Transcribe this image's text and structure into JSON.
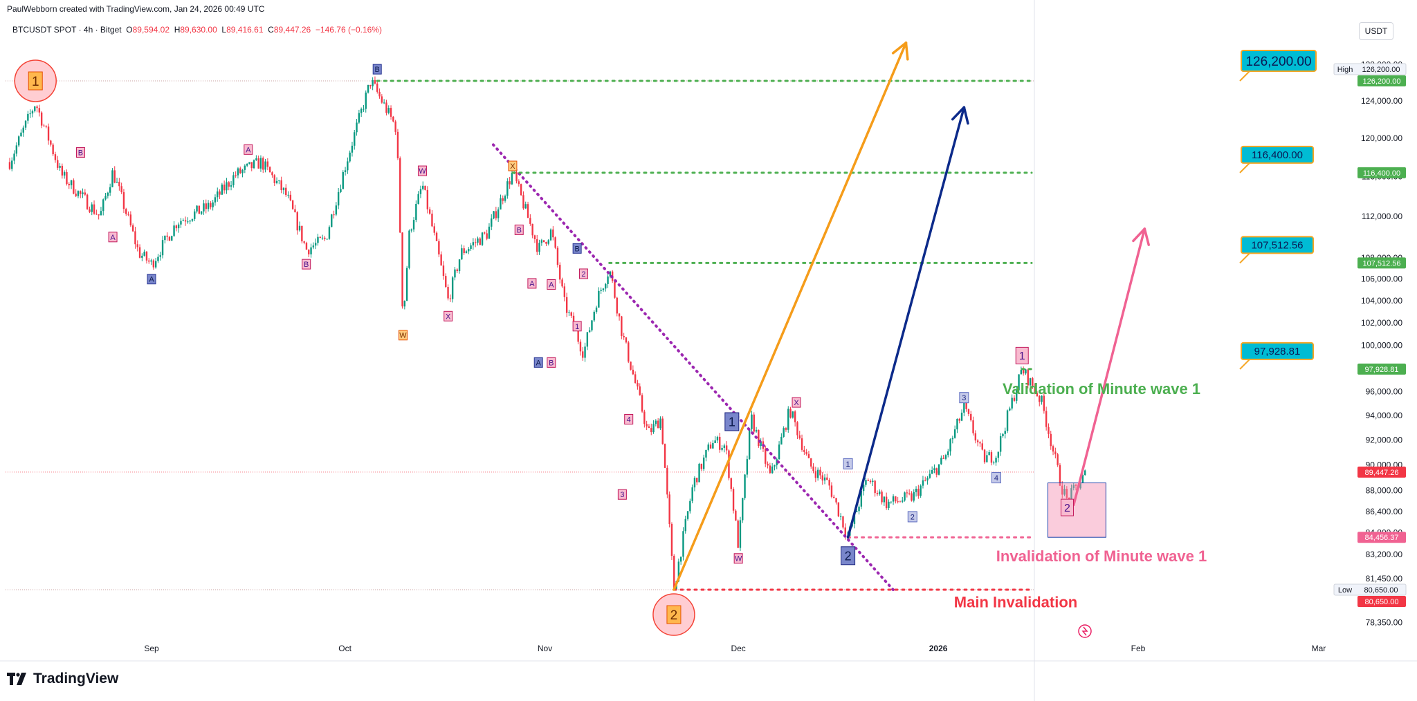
{
  "header": {
    "attribution": "PaulWebborn created with TradingView.com, Jan 24, 2026 00:49 UTC",
    "symbol": "BTCUSDT SPOT · 4h · Bitget",
    "o_label": "O",
    "o_value": "89,594.02",
    "h_label": "H",
    "h_value": "89,630.00",
    "l_label": "L",
    "l_value": "89,416.61",
    "c_label": "C",
    "c_value": "89,447.26",
    "change": "−146.76 (−0.16%)"
  },
  "currency_button": "USDT",
  "footer": {
    "brand": "TradingView"
  },
  "colors": {
    "up": "#089981",
    "down": "#f23645",
    "orange": "#f59c1a",
    "navy": "#0c2a8a",
    "pink": "#f06292",
    "green": "#4caf50",
    "red": "#f23645",
    "purple": "#9c27b0",
    "cyan_label": "#00bcd4",
    "label_border": "#f5a623"
  },
  "chart_data": {
    "type": "candlestick",
    "x_ticks": [
      "Sep",
      "Oct",
      "Nov",
      "Dec",
      "2026",
      "Feb",
      "Mar"
    ],
    "y_ticks": [
      "128,000.00",
      "124,000.00",
      "120,000.00",
      "116,000.00",
      "112,000.00",
      "108,000.00",
      "106,000.00",
      "104,000.00",
      "102,000.00",
      "100,000.00",
      "98,000.00",
      "96,000.00",
      "94,000.00",
      "92,000.00",
      "90,000.00",
      "88,000.00",
      "86,400.00",
      "84,800.00",
      "83,200.00",
      "81,450.00",
      "78,350.00"
    ],
    "y_tick_values": [
      128000,
      124000,
      120000,
      116000,
      112000,
      108000,
      106000,
      104000,
      102000,
      100000,
      98000,
      96000,
      94000,
      92000,
      90000,
      88000,
      86400,
      84800,
      83200,
      81450,
      78350
    ],
    "x_tick_dates": [
      "2025-09-01",
      "2025-10-01",
      "2025-11-01",
      "2025-12-01",
      "2026-01-01",
      "2026-02-01",
      "2026-03-01"
    ],
    "price_path": [
      [
        "2025-08-10",
        117500
      ],
      [
        "2025-08-14",
        123800
      ],
      [
        "2025-08-18",
        116200
      ],
      [
        "2025-08-24",
        112000
      ],
      [
        "2025-08-26",
        116500
      ],
      [
        "2025-08-30",
        108500
      ],
      [
        "2025-09-01",
        107400
      ],
      [
        "2025-09-05",
        111500
      ],
      [
        "2025-09-10",
        113000
      ],
      [
        "2025-09-14",
        116200
      ],
      [
        "2025-09-18",
        117500
      ],
      [
        "2025-09-22",
        114000
      ],
      [
        "2025-09-25",
        108800
      ],
      [
        "2025-09-28",
        109800
      ],
      [
        "2025-10-01",
        117000
      ],
      [
        "2025-10-05",
        126200
      ],
      [
        "2025-10-09",
        121000
      ],
      [
        "2025-10-10",
        102000
      ],
      [
        "2025-10-11",
        110500
      ],
      [
        "2025-10-13",
        115200
      ],
      [
        "2025-10-17",
        104000
      ],
      [
        "2025-10-19",
        108500
      ],
      [
        "2025-10-23",
        110300
      ],
      [
        "2025-10-27",
        116400
      ],
      [
        "2025-10-31",
        108800
      ],
      [
        "2025-11-02",
        110600
      ],
      [
        "2025-11-04",
        103800
      ],
      [
        "2025-11-07",
        99300
      ],
      [
        "2025-11-09",
        104000
      ],
      [
        "2025-11-11",
        107000
      ],
      [
        "2025-11-13",
        101000
      ],
      [
        "2025-11-17",
        92500
      ],
      [
        "2025-11-19",
        93800
      ],
      [
        "2025-11-21",
        80650
      ],
      [
        "2025-11-24",
        88500
      ],
      [
        "2025-11-27",
        92000
      ],
      [
        "2025-11-29",
        91500
      ],
      [
        "2025-12-01",
        83800
      ],
      [
        "2025-12-03",
        93800
      ],
      [
        "2025-12-06",
        89000
      ],
      [
        "2025-12-09",
        94500
      ],
      [
        "2025-12-12",
        90000
      ],
      [
        "2025-12-15",
        88500
      ],
      [
        "2025-12-18",
        84456
      ],
      [
        "2025-12-21",
        89000
      ],
      [
        "2025-12-24",
        87000
      ],
      [
        "2025-12-28",
        87500
      ],
      [
        "2026-01-02",
        90500
      ],
      [
        "2026-01-05",
        94700
      ],
      [
        "2026-01-08",
        90500
      ],
      [
        "2026-01-10",
        90800
      ],
      [
        "2026-01-14",
        97928
      ],
      [
        "2026-01-17",
        95200
      ],
      [
        "2026-01-20",
        88500
      ],
      [
        "2026-01-21",
        87200
      ],
      [
        "2026-01-24",
        89447
      ]
    ],
    "horizontal_levels": [
      {
        "value": 126200,
        "label": "126,200.00",
        "from": "2025-10-06"
      },
      {
        "value": 116400,
        "label": "116,400.00",
        "from": "2025-10-27"
      },
      {
        "value": 107512.56,
        "label": "107,512.56",
        "from": "2025-11-11"
      },
      {
        "value": 97928.81,
        "label": "97,928.81",
        "from": "2026-01-14"
      },
      {
        "value": 84456.37,
        "label": "84,456.37",
        "from": "2025-12-18"
      },
      {
        "value": 80650,
        "label": "80,650.00",
        "from": "2025-11-21"
      }
    ],
    "target_labels": [
      "126,200.00",
      "116,400.00",
      "107,512.56",
      "97,928.81"
    ],
    "price_axis_tags": [
      {
        "value": 126200,
        "text": "126,200.00",
        "color": "#4caf50"
      },
      {
        "value": 116400,
        "text": "116,400.00",
        "color": "#4caf50"
      },
      {
        "value": 107512.56,
        "text": "107,512.56",
        "color": "#4caf50"
      },
      {
        "value": 97928.81,
        "text": "97,928.81",
        "color": "#4caf50"
      },
      {
        "value": 89447.26,
        "text": "89,447.26",
        "color": "#f23645"
      },
      {
        "value": 84456.37,
        "text": "84,456.37",
        "color": "#f06292"
      },
      {
        "value": 80650,
        "text": "80,650.00",
        "color": "#f23645"
      }
    ],
    "high_tag": {
      "label": "High",
      "text": "126,200.00"
    },
    "low_tag": {
      "label": "Low",
      "text": "80,650.00"
    },
    "annotations": [
      {
        "text": "Validation of Minute wave 1",
        "color": "#4caf50"
      },
      {
        "text": "Invalidation of Minute wave 1",
        "color": "#f06292"
      },
      {
        "text": "Main Invalidation",
        "color": "#f23645"
      }
    ],
    "wave_labels": [
      {
        "t": "1",
        "d": "2025-08-14",
        "v": 126200,
        "s": "big-orange"
      },
      {
        "t": "2",
        "d": "2025-11-21",
        "v": 78900,
        "s": "big-orange"
      },
      {
        "t": "B",
        "d": "2025-10-06",
        "v": 127500,
        "s": "navy"
      },
      {
        "t": "B",
        "d": "2025-08-21",
        "v": 118500,
        "s": "pink"
      },
      {
        "t": "A",
        "d": "2025-08-26",
        "v": 110000,
        "s": "pink"
      },
      {
        "t": "A",
        "d": "2025-09-01",
        "v": 106000,
        "s": "navy"
      },
      {
        "t": "A",
        "d": "2025-09-16",
        "v": 118800,
        "s": "pink"
      },
      {
        "t": "B",
        "d": "2025-09-25",
        "v": 107400,
        "s": "pink"
      },
      {
        "t": "W",
        "d": "2025-10-13",
        "v": 116600,
        "s": "pink"
      },
      {
        "t": "W",
        "d": "2025-10-10",
        "v": 100900,
        "s": "orange"
      },
      {
        "t": "X",
        "d": "2025-10-17",
        "v": 102600,
        "s": "pink"
      },
      {
        "t": "X",
        "d": "2025-10-27",
        "v": 117100,
        "s": "orange"
      },
      {
        "t": "B",
        "d": "2025-10-28",
        "v": 110700,
        "s": "pink"
      },
      {
        "t": "A",
        "d": "2025-10-30",
        "v": 105600,
        "s": "pink"
      },
      {
        "t": "A",
        "d": "2025-11-02",
        "v": 105500,
        "s": "pink"
      },
      {
        "t": "A",
        "d": "2025-10-31",
        "v": 98500,
        "s": "navy"
      },
      {
        "t": "B",
        "d": "2025-11-02",
        "v": 98500,
        "s": "pink"
      },
      {
        "t": "B",
        "d": "2025-11-06",
        "v": 108900,
        "s": "navy"
      },
      {
        "t": "2",
        "d": "2025-11-07",
        "v": 106500,
        "s": "pink"
      },
      {
        "t": "1",
        "d": "2025-11-06",
        "v": 101700,
        "s": "pink"
      },
      {
        "t": "4",
        "d": "2025-11-14",
        "v": 93700,
        "s": "pink"
      },
      {
        "t": "3",
        "d": "2025-11-13",
        "v": 87700,
        "s": "pink"
      },
      {
        "t": "1",
        "d": "2025-11-30",
        "v": 93500,
        "s": "navy-big"
      },
      {
        "t": "W",
        "d": "2025-12-01",
        "v": 82900,
        "s": "pink"
      },
      {
        "t": "X",
        "d": "2025-12-10",
        "v": 95100,
        "s": "pink"
      },
      {
        "t": "1",
        "d": "2025-12-18",
        "v": 90100,
        "s": "lav"
      },
      {
        "t": "2",
        "d": "2025-12-18",
        "v": 83100,
        "s": "navy-big"
      },
      {
        "t": "2",
        "d": "2025-12-28",
        "v": 86000,
        "s": "lav"
      },
      {
        "t": "3",
        "d": "2026-01-05",
        "v": 95500,
        "s": "lav"
      },
      {
        "t": "4",
        "d": "2026-01-10",
        "v": 89000,
        "s": "lav"
      },
      {
        "t": "1",
        "d": "2026-01-14",
        "v": 99100,
        "s": "pink-big"
      },
      {
        "t": "2",
        "d": "2026-01-21",
        "v": 86700,
        "s": "pink-big"
      }
    ],
    "zone": {
      "from": "2026-01-18",
      "to": "2026-01-27",
      "top": 88600,
      "bottom": 84456.37
    },
    "arrows": [
      {
        "color": "#f59c1a",
        "from": [
          "2025-11-21",
          80650
        ],
        "to": [
          "2025-12-27",
          130500
        ]
      },
      {
        "color": "#0c2a8a",
        "from": [
          "2025-12-18",
          84456
        ],
        "to": [
          "2026-01-05",
          123300
        ]
      },
      {
        "color": "#f06292",
        "from": [
          "2026-01-22",
          86900
        ],
        "to": [
          "2026-02-02",
          110800
        ]
      }
    ],
    "dotted_trendline": {
      "from": [
        "2025-10-24",
        119300
      ],
      "to": [
        "2025-12-25",
        80650
      ]
    }
  }
}
